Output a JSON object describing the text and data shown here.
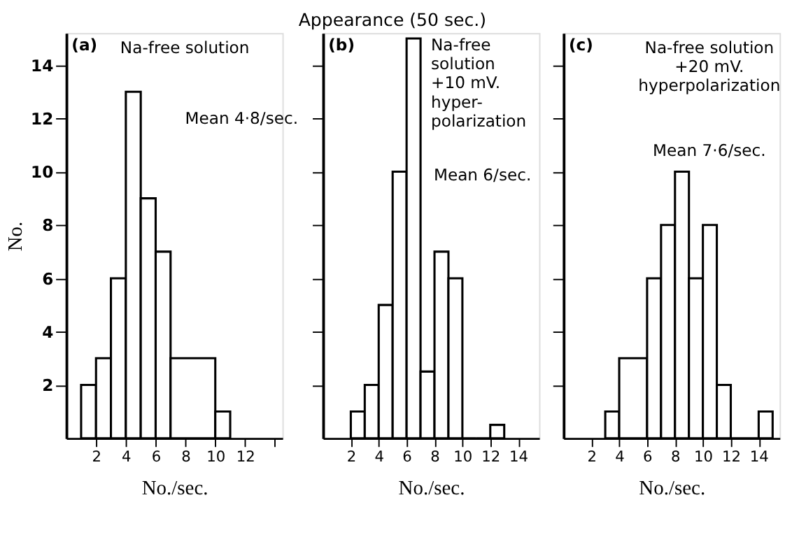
{
  "chart_data": [
    {
      "type": "histogram",
      "title": "(a)",
      "ylabel": "No.",
      "xlabel": "No./sec.",
      "color": "#000000",
      "bins": [
        1,
        2,
        3,
        4,
        5,
        6,
        7,
        10,
        11
      ],
      "values": [
        2,
        3,
        6,
        13,
        9,
        7,
        3,
        1
      ],
      "xlim": [
        0,
        14.5
      ],
      "ylim": [
        0,
        15.2
      ],
      "xticks": [
        2,
        4,
        6,
        8,
        10,
        12,
        {
          "value": 14,
          "label": null
        }
      ],
      "yticks": [
        2,
        4,
        6,
        8,
        10,
        12,
        14
      ],
      "annotations": [
        "Na-free solution",
        "Mean 4·8/sec."
      ]
    },
    {
      "type": "histogram",
      "title": "(b)",
      "xlabel": "No./sec.",
      "color": "#000000",
      "subtitle": "Appearance (50 sec.)",
      "bins": [
        2,
        3,
        4,
        5,
        6,
        7,
        8,
        9,
        10,
        11,
        12,
        13
      ],
      "values": [
        1,
        2,
        5,
        10,
        15,
        2.5,
        7,
        6,
        0,
        0,
        0.5
      ],
      "xlim": [
        0,
        15.5
      ],
      "ylim": [
        0,
        15.2
      ],
      "xticks": [
        2,
        4,
        6,
        8,
        10,
        12,
        14
      ],
      "yticks": [
        {
          "value": 2,
          "label": null
        },
        {
          "value": 4,
          "label": null
        },
        {
          "value": 6,
          "label": null
        },
        {
          "value": 8,
          "label": null
        },
        {
          "value": 10,
          "label": null
        },
        {
          "value": 12,
          "label": null
        },
        {
          "value": 14,
          "label": null
        }
      ],
      "tick_labels": "x",
      "annotations": [
        "Na-free\nsolution\n+10 mV.\nhyper-\npolarization",
        "Mean 6/sec."
      ]
    },
    {
      "type": "histogram",
      "title": "(c)",
      "xlabel": "No./sec.",
      "color": "#000000",
      "bins": [
        3,
        4,
        6,
        7,
        8,
        9,
        10,
        11,
        12,
        14,
        15
      ],
      "values": [
        1,
        3,
        6,
        8,
        10,
        6,
        8,
        2,
        0,
        1
      ],
      "xlim": [
        0,
        15.5
      ],
      "ylim": [
        0,
        15.2
      ],
      "xticks": [
        2,
        4,
        6,
        8,
        10,
        12,
        14
      ],
      "yticks": [
        {
          "value": 2,
          "label": null
        },
        {
          "value": 4,
          "label": null
        },
        {
          "value": 6,
          "label": null
        },
        {
          "value": 8,
          "label": null
        },
        {
          "value": 10,
          "label": null
        },
        {
          "value": 12,
          "label": null
        },
        {
          "value": 14,
          "label": null
        }
      ],
      "tick_labels": "x",
      "annotations": [
        "Na-free solution\n+20 mV.\nhyperpolarization",
        "Mean 7·6/sec."
      ]
    }
  ]
}
